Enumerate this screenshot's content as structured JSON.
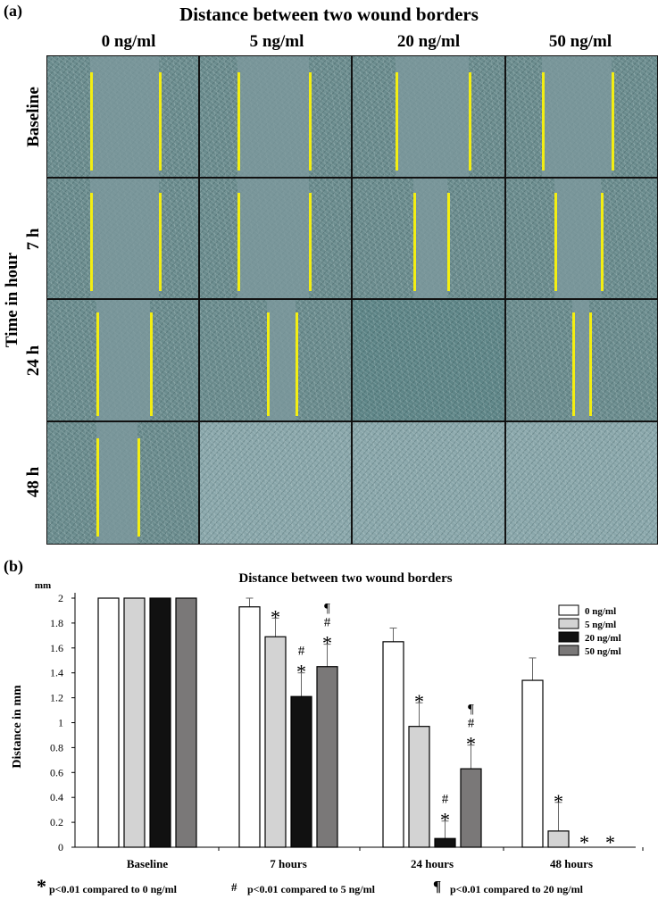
{
  "panel_a": {
    "label": "(a)",
    "title": "Distance between two wound borders",
    "y_axis_title": "Time in hour",
    "columns": [
      "0 ng/ml",
      "5 ng/ml",
      "20 ng/ml",
      "50 ng/ml"
    ],
    "rows": [
      "Baseline",
      "7 h",
      "24 h",
      "48 h"
    ],
    "colors": {
      "cells": "#6b8c8e",
      "gap": "#7e9a9d",
      "border_line": "#f3ee12"
    }
  },
  "panel_b": {
    "label": "(b)",
    "footnotes": {
      "star_symbol": "*",
      "star_text": "p<0.01  compared to 0 ng/ml",
      "hash_symbol": "#",
      "hash_text": "p<0.01  compared to 5 ng/ml",
      "para_symbol": "¶",
      "para_text": "p<0.01  compared to 20 ng/ml"
    }
  },
  "chart_data": {
    "type": "bar",
    "title": "Distance between two wound borders",
    "ylabel": "Distance in mm",
    "yunit": "mm",
    "ylim": [
      0,
      2
    ],
    "yticks": [
      "0",
      "0.2",
      "0.4",
      "0.6",
      "0.8",
      "1",
      "1.2",
      "1.4",
      "1.6",
      "1.8",
      "2"
    ],
    "categories": [
      "Baseline",
      "7 hours",
      "24 hours",
      "48 hours"
    ],
    "legend_position": "top-right",
    "series": [
      {
        "name": "0 ng/ml",
        "color": "#ffffff",
        "values": [
          2,
          1.93,
          1.65,
          1.34
        ],
        "errors": [
          0,
          0.07,
          0.11,
          0.18
        ],
        "markers": [
          "",
          "",
          "",
          ""
        ]
      },
      {
        "name": "5 ng/ml",
        "color": "#d3d3d3",
        "values": [
          2,
          1.69,
          0.97,
          0.13
        ],
        "errors": [
          0,
          0.15,
          0.19,
          0.23
        ],
        "markers": [
          "",
          "*",
          "*",
          "*"
        ]
      },
      {
        "name": "20 ng/ml",
        "color": "#111111",
        "values": [
          2,
          1.21,
          0.07,
          0
        ],
        "errors": [
          0,
          0.19,
          0.14,
          0
        ],
        "markers": [
          "",
          "#\n*",
          "#\n*",
          "*"
        ]
      },
      {
        "name": "50 ng/ml",
        "color": "#7a7878",
        "values": [
          2,
          1.45,
          0.63,
          0
        ],
        "errors": [
          0,
          0.18,
          0.19,
          0
        ],
        "markers": [
          "",
          "¶\n#\n*",
          "¶\n#\n*",
          "*"
        ]
      }
    ]
  }
}
